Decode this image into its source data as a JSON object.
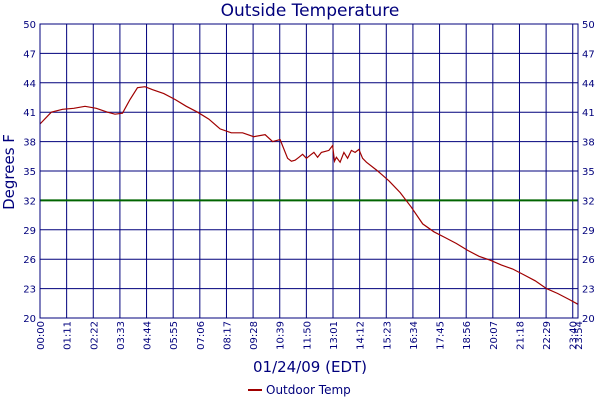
{
  "chart_data": {
    "type": "line",
    "title": "Outside Temperature",
    "xlabel": "01/24/09 (EDT)",
    "ylabel": "Degrees F",
    "ylim": [
      20,
      50
    ],
    "yticks": [
      20,
      23,
      26,
      29,
      32,
      35,
      38,
      41,
      44,
      47,
      50
    ],
    "xticks": [
      "00:00",
      "01:11",
      "02:22",
      "03:33",
      "04:44",
      "05:55",
      "07:06",
      "08:17",
      "09:28",
      "10:39",
      "11:50",
      "13:01",
      "14:12",
      "15:23",
      "16:34",
      "17:45",
      "18:56",
      "20:07",
      "21:18",
      "22:29",
      "23:40",
      "23:54"
    ],
    "grid": true,
    "reference_line": {
      "value": 32,
      "color": "#006400"
    },
    "legend": {
      "placement": "bottom-center"
    },
    "colors": {
      "series": "#a00000",
      "grid": "#00007c",
      "reference": "#006400",
      "text": "#00007c"
    },
    "series": [
      {
        "name": "Outdoor Temp",
        "x": [
          "00:00",
          "00:30",
          "01:00",
          "01:30",
          "02:00",
          "02:30",
          "03:00",
          "03:20",
          "03:40",
          "04:00",
          "04:20",
          "04:40",
          "05:00",
          "05:30",
          "06:00",
          "06:30",
          "07:00",
          "07:30",
          "08:00",
          "08:30",
          "09:00",
          "09:30",
          "10:00",
          "10:20",
          "10:40",
          "11:00",
          "11:10",
          "11:20",
          "11:30",
          "11:40",
          "11:50",
          "12:00",
          "12:10",
          "12:20",
          "12:30",
          "12:40",
          "12:50",
          "13:00",
          "13:05",
          "13:10",
          "13:20",
          "13:30",
          "13:40",
          "13:50",
          "14:00",
          "14:10",
          "14:20",
          "14:30",
          "15:00",
          "15:30",
          "16:00",
          "16:30",
          "17:00",
          "17:30",
          "18:00",
          "18:30",
          "19:00",
          "19:30",
          "20:00",
          "20:30",
          "21:00",
          "21:30",
          "22:00",
          "22:30",
          "23:00",
          "23:30",
          "23:54"
        ],
        "values": [
          39.8,
          41.0,
          41.3,
          41.4,
          41.6,
          41.4,
          41.0,
          40.8,
          40.9,
          42.3,
          43.5,
          43.6,
          43.3,
          42.9,
          42.3,
          41.6,
          41.0,
          40.3,
          39.3,
          38.9,
          38.9,
          38.5,
          38.7,
          38.0,
          38.2,
          36.3,
          36.0,
          36.1,
          36.4,
          36.7,
          36.3,
          36.6,
          36.9,
          36.4,
          36.9,
          37.0,
          37.1,
          37.6,
          36.0,
          36.4,
          35.9,
          36.9,
          36.3,
          37.1,
          36.9,
          37.2,
          36.3,
          35.9,
          35.0,
          34.0,
          32.8,
          31.3,
          29.6,
          28.8,
          28.2,
          27.6,
          26.9,
          26.3,
          25.9,
          25.4,
          25.0,
          24.4,
          23.8,
          23.0,
          22.5,
          21.9,
          21.4
        ]
      }
    ]
  }
}
